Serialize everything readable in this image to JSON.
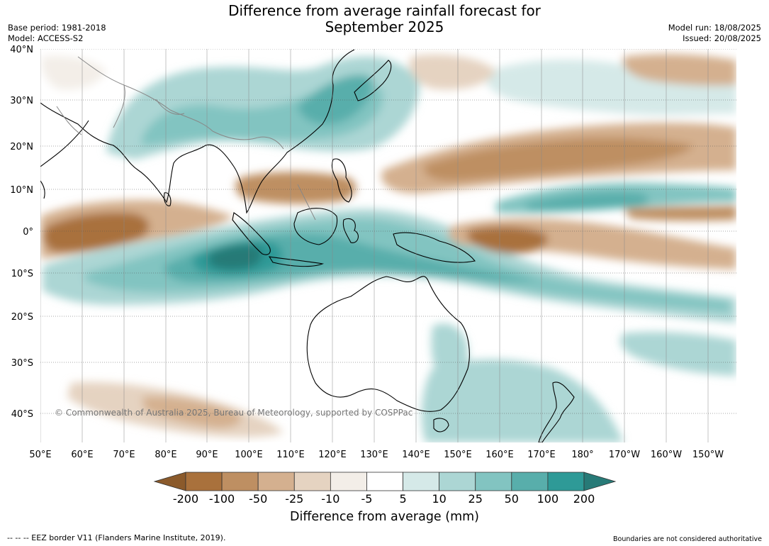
{
  "title_line1": "Difference from average rainfall forecast for",
  "title_line2": "September 2025",
  "base_period": "Base period: 1981-2018",
  "model": "Model: ACCESS-S2",
  "model_run": "Model run: 18/08/2025",
  "issued": "Issued: 20/08/2025",
  "copyright": "© Commonwealth of Australia 2025, Bureau of Meteorology, supported by COSPPac",
  "lat_labels": [
    "40°N",
    "30°N",
    "20°N",
    "10°N",
    "0°",
    "10°S",
    "20°S",
    "30°S",
    "40°S"
  ],
  "lon_labels": [
    "50°E",
    "60°E",
    "70°E",
    "80°E",
    "90°E",
    "100°E",
    "110°E",
    "120°E",
    "130°E",
    "140°E",
    "150°E",
    "160°E",
    "170°E",
    "180°",
    "170°W",
    "160°W",
    "150°W"
  ],
  "colorbar": {
    "title": "Difference from average (mm)",
    "ticks": [
      "-200",
      "-100",
      "-50",
      "-25",
      "-10",
      "-5",
      "5",
      "10",
      "25",
      "50",
      "100",
      "200"
    ],
    "colors": [
      "#8b5a2b",
      "#a9713c",
      "#be8f62",
      "#d4b08f",
      "#e5d3c1",
      "#f3eee8",
      "#ffffff",
      "#d5e9e8",
      "#acd6d4",
      "#82c4c1",
      "#58aeab",
      "#2e9a97",
      "#277a77"
    ]
  },
  "footer_left": "--  --  -- EEZ border V11 (Flanders Marine Institute, 2019).",
  "footer_right": "Boundaries are not considered authoritative"
}
